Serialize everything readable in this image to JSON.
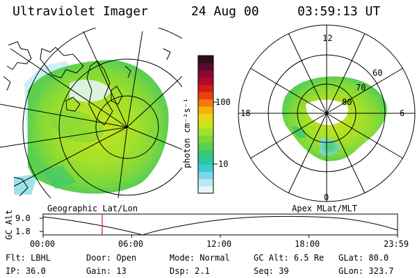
{
  "header": {
    "instrument": "Ultraviolet Imager",
    "date": "24 Aug 00",
    "time": "03:59:13 UT"
  },
  "colorbar": {
    "unit_label": "photon cm⁻²s⁻¹",
    "ticks": [
      "100",
      "10"
    ],
    "colors": [
      "#2c0f1e",
      "#5c0a2c",
      "#8a0a32",
      "#b00a28",
      "#d21a18",
      "#e84010",
      "#f27a0a",
      "#f6b00e",
      "#e8d814",
      "#c8e41c",
      "#a4e02a",
      "#7ed83a",
      "#5ccf52",
      "#3ac870",
      "#26c7a2",
      "#3ecad0",
      "#7ed8e6",
      "#bce8f2",
      "#e6f6fa"
    ]
  },
  "geographic_panel": {
    "label": "Geographic Lat/Lon"
  },
  "apex_panel": {
    "label": "Apex MLat/MLT",
    "mlt_labels": {
      "top": "12",
      "right": "6",
      "bottom": "0",
      "left": "18"
    },
    "mlat_labels": [
      "60",
      "70",
      "80"
    ]
  },
  "altitude_plot": {
    "y_axis_label": "GC Alt",
    "y_ticks": [
      "9.0",
      "1.8"
    ],
    "x_ticks": [
      "00:00",
      "06:00",
      "12:00",
      "18:00",
      "23:59"
    ],
    "marker_time_hours": 4.0,
    "marker_color": "#d21a18"
  },
  "status": {
    "filter": "Flt: LBHL",
    "ip": "IP: 36.0",
    "door": "Door: Open",
    "gain": "Gain: 13",
    "mode": "Mode: Normal",
    "dsp": "Dsp:   2.1",
    "gc_alt": "GC Alt: 6.5 Re",
    "seq": "Seq: 39",
    "glat": "GLat:  80.0",
    "glon": "GLon: 323.7"
  }
}
